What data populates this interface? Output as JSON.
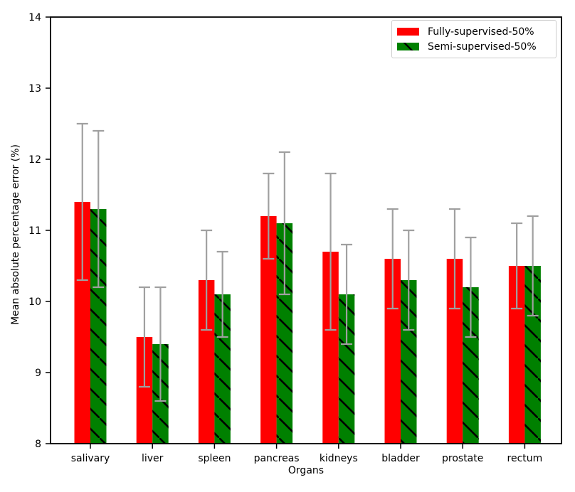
{
  "chart_data": {
    "type": "bar",
    "title": "",
    "xlabel": "Organs",
    "ylabel": "Mean absolute percentage error (%)",
    "categories": [
      "salivary",
      "liver",
      "spleen",
      "pancreas",
      "kidneys",
      "bladder",
      "prostate",
      "rectum"
    ],
    "series": [
      {
        "name": "Fully-supervised-50%",
        "color": "#ff0000",
        "hatch": "none",
        "values": [
          11.4,
          9.5,
          10.3,
          11.2,
          10.7,
          10.6,
          10.6,
          10.5
        ],
        "errors": [
          1.1,
          0.7,
          0.7,
          0.6,
          1.1,
          0.7,
          0.7,
          0.6
        ]
      },
      {
        "name": "Semi-supervised-50%",
        "color": "#008000",
        "hatch": "\\",
        "values": [
          11.3,
          9.4,
          10.1,
          11.1,
          10.1,
          10.3,
          10.2,
          10.5
        ],
        "errors": [
          1.1,
          0.8,
          0.6,
          1.0,
          0.7,
          0.7,
          0.7,
          0.7
        ]
      }
    ],
    "ylim": [
      8,
      14
    ],
    "yticks": [
      8,
      9,
      10,
      11,
      12,
      13,
      14
    ],
    "grid": false,
    "legend_position": "upper right",
    "axis_color": "#000000",
    "error_bar_color": "#a0a0a0",
    "hatch_color": "#000000"
  }
}
